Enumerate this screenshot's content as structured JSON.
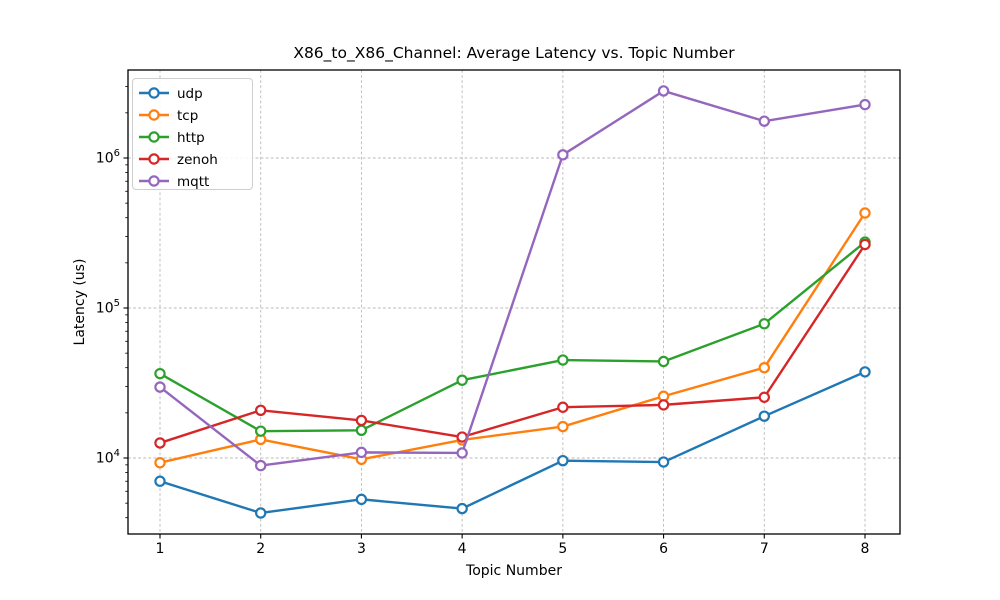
{
  "chart_data": {
    "type": "line",
    "title": "X86_to_X86_Channel: Average Latency vs. Topic Number",
    "xlabel": "Topic Number",
    "ylabel": "Latency (us)",
    "x": [
      1,
      2,
      3,
      4,
      5,
      6,
      7,
      8
    ],
    "xtick_labels": [
      "1",
      "2",
      "3",
      "4",
      "5",
      "6",
      "7",
      "8"
    ],
    "yscale": "log",
    "ylim": [
      3100,
      3860000
    ],
    "xlim": [
      0.68,
      8.35
    ],
    "grid": true,
    "grid_color": "#b9b9b9",
    "legend_position": "upper-left",
    "yticks": [
      {
        "value": 10000,
        "base": "10",
        "exp": "4"
      },
      {
        "value": 100000,
        "base": "10",
        "exp": "5"
      },
      {
        "value": 1000000,
        "base": "10",
        "exp": "6"
      }
    ],
    "series": [
      {
        "name": "udp",
        "color": "#1f77b4",
        "marker": "open-circle",
        "values": [
          7000,
          4300,
          5300,
          4600,
          9600,
          9400,
          19000,
          37500
        ]
      },
      {
        "name": "tcp",
        "color": "#ff7f0e",
        "marker": "open-circle",
        "values": [
          9300,
          13300,
          9800,
          13200,
          16200,
          25800,
          40000,
          430000
        ]
      },
      {
        "name": "http",
        "color": "#2ca02c",
        "marker": "open-circle",
        "values": [
          36500,
          15100,
          15300,
          33000,
          45000,
          44000,
          78500,
          275000
        ]
      },
      {
        "name": "zenoh",
        "color": "#d62728",
        "marker": "open-circle",
        "values": [
          12600,
          20800,
          17800,
          13800,
          21800,
          22600,
          25400,
          265000
        ]
      },
      {
        "name": "mqtt",
        "color": "#9467bd",
        "marker": "open-circle",
        "values": [
          29700,
          8900,
          10900,
          10800,
          1050000,
          2800000,
          1760000,
          2270000
        ]
      }
    ]
  }
}
